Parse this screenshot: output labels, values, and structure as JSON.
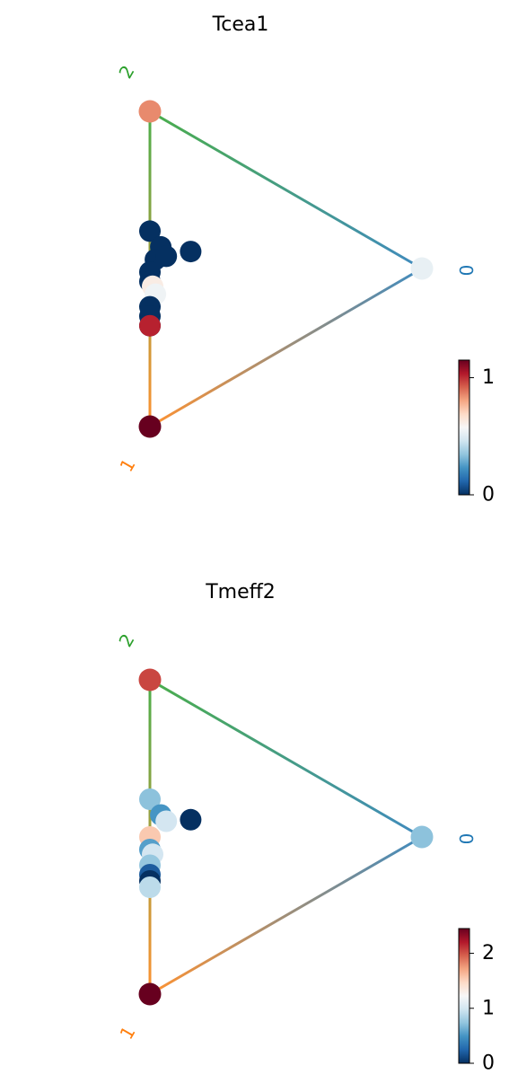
{
  "chart_data": [
    {
      "type": "scatter",
      "title": "Tcea1",
      "nodes": [
        {
          "label": "0",
          "color": "#1f77b4",
          "value": 0.53
        },
        {
          "label": "1",
          "color": "#ff7f0e",
          "value": 1.15
        },
        {
          "label": "2",
          "color": "#2ca02c",
          "value": 0.85
        }
      ],
      "edges": [
        [
          2,
          0
        ],
        [
          0,
          1
        ],
        [
          2,
          1
        ]
      ],
      "colormap": "RdBu_r",
      "color_range": [
        0,
        1.15
      ],
      "colorbar_ticks": [
        "0",
        "1"
      ],
      "colorbar_tick_values": [
        0,
        1
      ],
      "points": [
        {
          "f0": 0.0,
          "f2": 0.62,
          "value": 0.0
        },
        {
          "f0": 0.04,
          "f2": 0.55,
          "value": 0.0
        },
        {
          "f0": 0.02,
          "f2": 0.52,
          "value": 0.0
        },
        {
          "f0": 0.06,
          "f2": 0.51,
          "value": 0.0
        },
        {
          "f0": 0.15,
          "f2": 0.48,
          "value": 0.0
        },
        {
          "f0": 0.0,
          "f2": 0.49,
          "value": 0.0
        },
        {
          "f0": 0.0,
          "f2": 0.46,
          "value": 0.0
        },
        {
          "f0": 0.01,
          "f2": 0.44,
          "value": 0.62
        },
        {
          "f0": 0.02,
          "f2": 0.41,
          "value": 0.55
        },
        {
          "f0": 0.0,
          "f2": 0.38,
          "value": 0.0
        },
        {
          "f0": 0.0,
          "f2": 0.35,
          "value": 0.0
        },
        {
          "f0": 0.0,
          "f2": 0.32,
          "value": 0.0
        },
        {
          "f0": 0.0,
          "f2": 0.32,
          "value": 1.02
        }
      ]
    },
    {
      "type": "scatter",
      "title": "Tmeff2",
      "nodes": [
        {
          "label": "0",
          "color": "#1f77b4",
          "value": 0.72
        },
        {
          "label": "1",
          "color": "#ff7f0e",
          "value": 2.45
        },
        {
          "label": "2",
          "color": "#2ca02c",
          "value": 2.05
        }
      ],
      "edges": [
        [
          2,
          0
        ],
        [
          0,
          1
        ],
        [
          2,
          1
        ]
      ],
      "colormap": "RdBu_r",
      "color_range": [
        0,
        2.45
      ],
      "colorbar_ticks": [
        "0",
        "1",
        "2"
      ],
      "colorbar_tick_values": [
        0,
        1,
        2
      ],
      "points": [
        {
          "f0": 0.0,
          "f2": 0.62,
          "value": 0.72
        },
        {
          "f0": 0.04,
          "f2": 0.55,
          "value": 0.5
        },
        {
          "f0": 0.06,
          "f2": 0.52,
          "value": 1.0
        },
        {
          "f0": 0.0,
          "f2": 0.5,
          "value": 1.55
        },
        {
          "f0": 0.15,
          "f2": 0.48,
          "value": 0.0
        },
        {
          "f0": 0.0,
          "f2": 0.46,
          "value": 0.55
        },
        {
          "f0": 0.01,
          "f2": 0.44,
          "value": 1.0
        },
        {
          "f0": 0.0,
          "f2": 0.41,
          "value": 0.75
        },
        {
          "f0": 0.0,
          "f2": 0.38,
          "value": 0.2
        },
        {
          "f0": 0.0,
          "f2": 0.36,
          "value": 0.0
        },
        {
          "f0": 0.0,
          "f2": 0.34,
          "value": 0.9
        }
      ]
    }
  ]
}
